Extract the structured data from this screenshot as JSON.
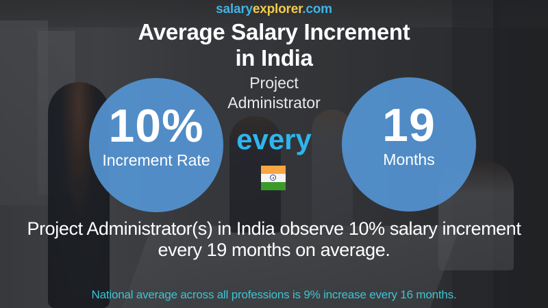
{
  "brand": {
    "part1": "salary",
    "part2": "explorer",
    "part3": ".com",
    "colors": {
      "blue": "#3fb3e6",
      "yellow": "#f3cb4a"
    }
  },
  "header": {
    "title_line1": "Average Salary Increment",
    "title_line2": "in India",
    "job_line1": "Project",
    "job_line2": "Administrator"
  },
  "increment_rate": {
    "value": "10%",
    "label": "Increment Rate"
  },
  "connector": "every",
  "frequency": {
    "value": "19",
    "label": "Months"
  },
  "flag": {
    "country": "India",
    "icon": "india-flag-icon"
  },
  "summary": {
    "line1": "Project Administrator(s) in India observe 10% salary increment",
    "line2": "every 19 months on average."
  },
  "national_average": "National average across all professions is 9% increase every 16 months.",
  "colors": {
    "circle": "#5494d2",
    "every": "#2fb5ee",
    "national_text": "#3ec3d4"
  }
}
